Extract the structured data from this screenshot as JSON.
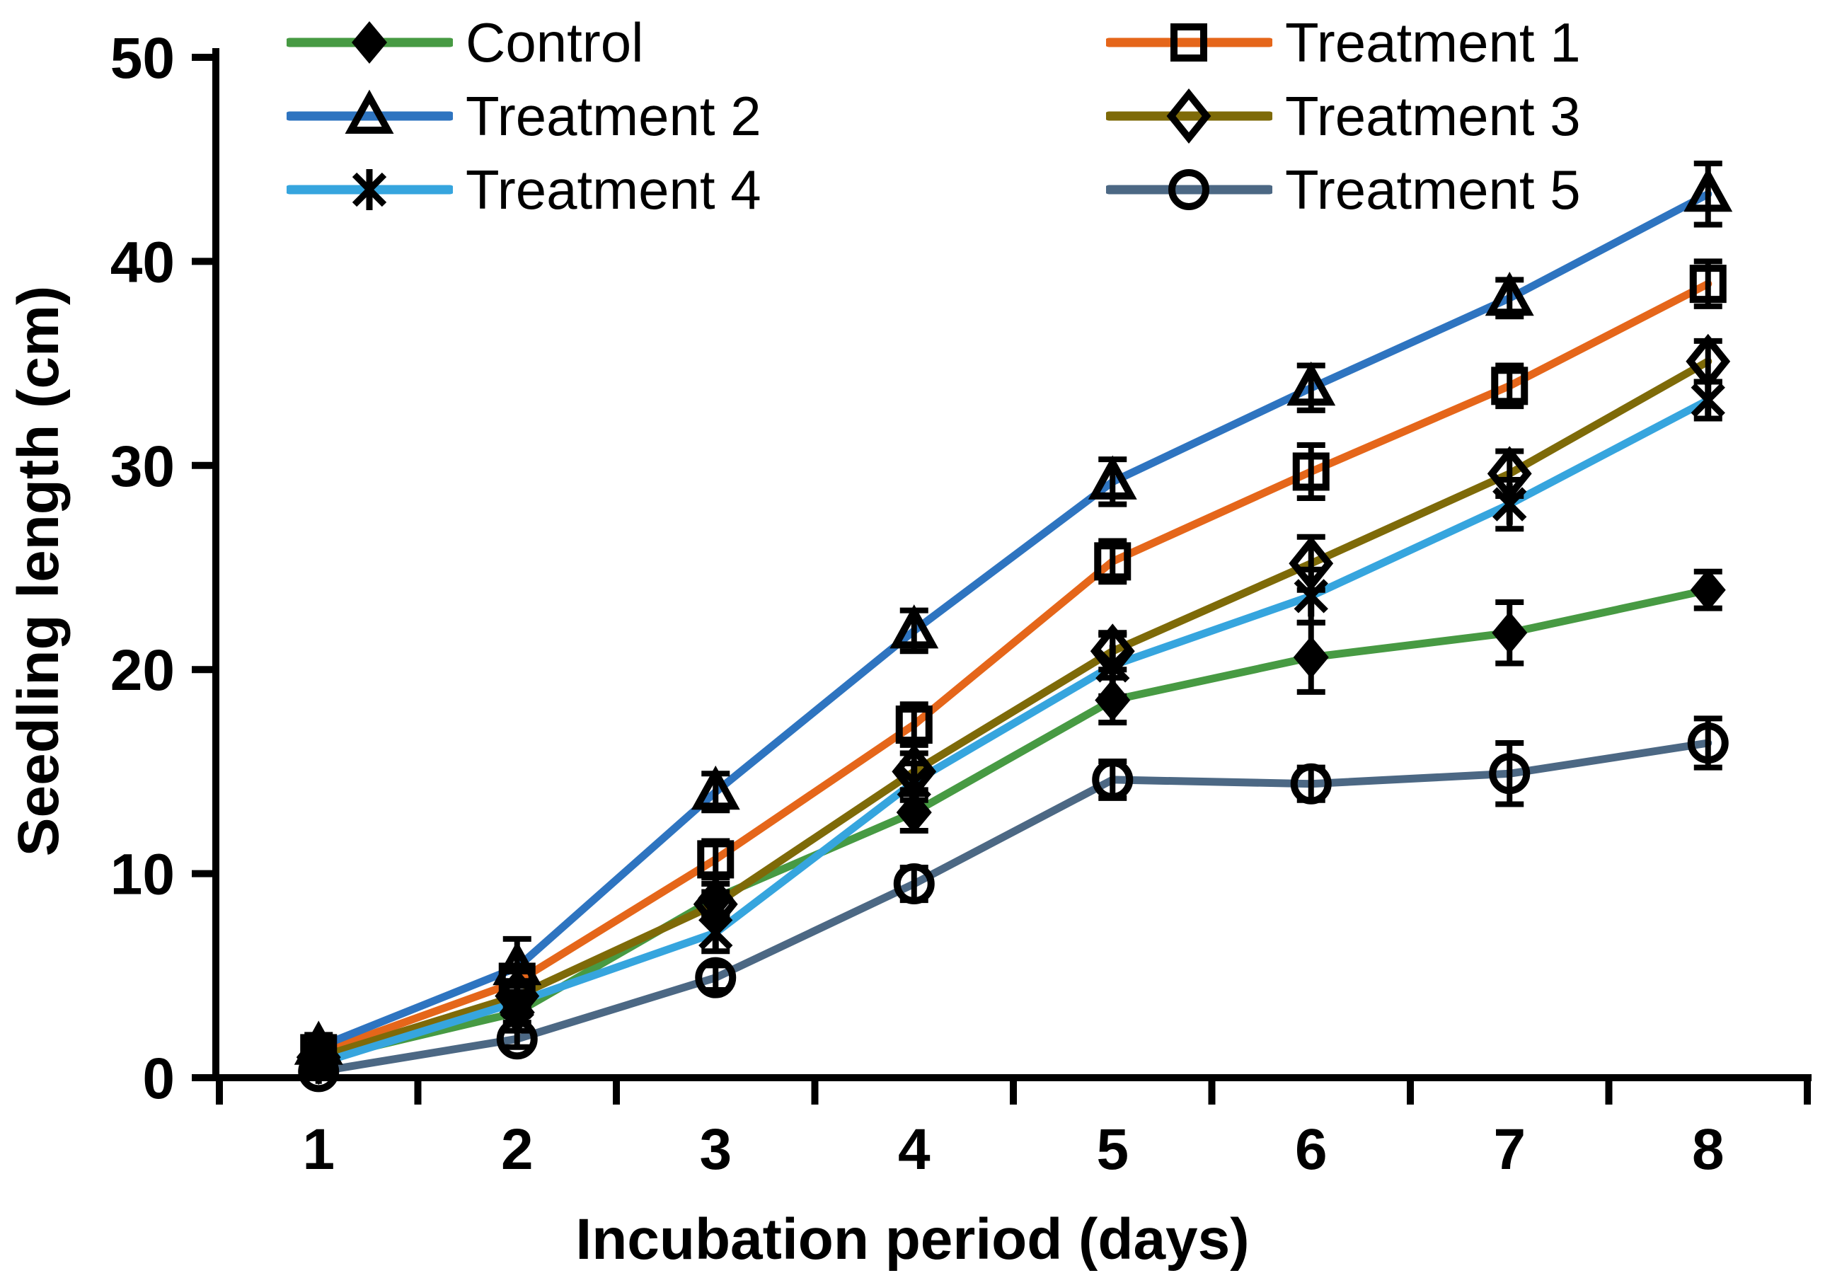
{
  "chart_data": {
    "type": "line",
    "title": "",
    "xlabel": "Incubation period (days)",
    "ylabel": "Seedling length (cm)",
    "x": [
      1,
      2,
      3,
      4,
      5,
      6,
      7,
      8
    ],
    "ylim": [
      0,
      50
    ],
    "yticks": [
      0,
      10,
      20,
      30,
      40,
      50
    ],
    "grid": false,
    "legend_position": "top-two-columns",
    "error_bars": true,
    "axis_color": "#000000",
    "marker_color": "#000000",
    "series": [
      {
        "name": "Control",
        "color": "#479A43",
        "marker": "diamond-filled",
        "values": [
          0.9,
          3.2,
          8.8,
          13.0,
          18.5,
          20.6,
          21.8,
          23.9
        ],
        "errors": [
          0.5,
          0.5,
          0.7,
          0.9,
          1.1,
          1.7,
          1.5,
          0.9
        ]
      },
      {
        "name": "Treatment 1",
        "color": "#E5661A",
        "marker": "square-open",
        "values": [
          1.2,
          4.7,
          10.7,
          17.3,
          25.3,
          29.7,
          33.9,
          38.9
        ],
        "errors": [
          0.4,
          0.5,
          0.9,
          1.0,
          1.0,
          1.3,
          1.0,
          1.1
        ]
      },
      {
        "name": "Treatment 2",
        "color": "#2E74C0",
        "marker": "triangle-open",
        "values": [
          1.5,
          5.4,
          14.0,
          21.9,
          29.2,
          33.8,
          38.2,
          43.3
        ],
        "errors": [
          0.6,
          1.4,
          0.9,
          1.0,
          1.1,
          1.1,
          0.9,
          1.5
        ]
      },
      {
        "name": "Treatment 3",
        "color": "#7E6A08",
        "marker": "diamond-open",
        "values": [
          1.0,
          4.0,
          8.5,
          15.0,
          20.9,
          25.2,
          29.6,
          35.1
        ],
        "errors": [
          0.4,
          0.5,
          0.6,
          0.9,
          0.9,
          1.3,
          1.1,
          1.0
        ]
      },
      {
        "name": "Treatment 4",
        "color": "#36A5DE",
        "marker": "asterisk",
        "values": [
          0.7,
          3.7,
          7.1,
          14.5,
          20.2,
          23.6,
          28.1,
          33.2
        ],
        "errors": [
          0.4,
          0.5,
          0.9,
          0.9,
          1.5,
          1.3,
          1.2,
          0.9
        ]
      },
      {
        "name": "Treatment 5",
        "color": "#4C6884",
        "marker": "circle-open",
        "values": [
          0.3,
          1.9,
          4.9,
          9.5,
          14.6,
          14.4,
          14.9,
          16.4
        ],
        "errors": [
          0.3,
          0.4,
          0.6,
          0.8,
          0.9,
          0.8,
          1.5,
          1.2
        ]
      }
    ]
  }
}
